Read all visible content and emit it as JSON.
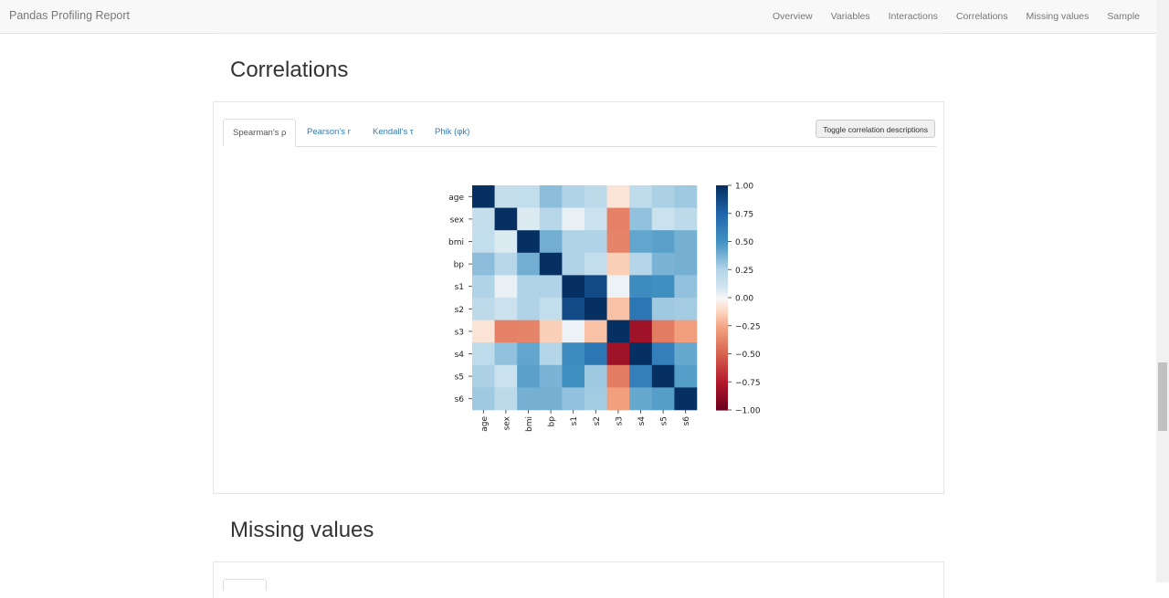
{
  "navbar": {
    "brand": "Pandas Profiling Report",
    "links": [
      "Overview",
      "Variables",
      "Interactions",
      "Correlations",
      "Missing values",
      "Sample"
    ]
  },
  "correlations": {
    "title": "Correlations",
    "tabs": [
      "Spearman's ρ",
      "Pearson's r",
      "Kendall's τ",
      "Phik (φk)"
    ],
    "active_tab": 0,
    "toggle_button": "Toggle correlation descriptions"
  },
  "missing": {
    "title": "Missing values"
  },
  "chart_data": {
    "type": "heatmap",
    "title": "",
    "variables": [
      "age",
      "sex",
      "bmi",
      "bp",
      "s1",
      "s2",
      "s3",
      "s4",
      "s5",
      "s6"
    ],
    "matrix": [
      [
        1.0,
        0.17,
        0.18,
        0.34,
        0.26,
        0.21,
        -0.07,
        0.2,
        0.27,
        0.3
      ],
      [
        0.17,
        1.0,
        0.07,
        0.24,
        0.04,
        0.13,
        -0.38,
        0.33,
        0.14,
        0.21
      ],
      [
        0.18,
        0.07,
        1.0,
        0.4,
        0.26,
        0.26,
        -0.37,
        0.43,
        0.45,
        0.39
      ],
      [
        0.34,
        0.24,
        0.4,
        1.0,
        0.26,
        0.18,
        -0.13,
        0.25,
        0.38,
        0.39
      ],
      [
        0.26,
        0.04,
        0.26,
        0.26,
        1.0,
        0.88,
        0.03,
        0.54,
        0.52,
        0.33
      ],
      [
        0.21,
        0.13,
        0.26,
        0.18,
        0.88,
        1.0,
        -0.17,
        0.66,
        0.3,
        0.29
      ],
      [
        -0.07,
        -0.38,
        -0.37,
        -0.13,
        0.03,
        -0.17,
        1.0,
        -0.81,
        -0.4,
        -0.27
      ],
      [
        0.2,
        0.33,
        0.43,
        0.25,
        0.54,
        0.66,
        -0.81,
        1.0,
        0.61,
        0.42
      ],
      [
        0.27,
        0.14,
        0.45,
        0.38,
        0.52,
        0.3,
        -0.4,
        0.61,
        1.0,
        0.46
      ],
      [
        0.3,
        0.21,
        0.39,
        0.39,
        0.33,
        0.29,
        -0.27,
        0.42,
        0.46,
        1.0
      ]
    ],
    "colormap": "RdBu",
    "vmin": -1.0,
    "vmax": 1.0,
    "colorbar_ticks": [
      "1.00",
      "0.75",
      "0.50",
      "0.25",
      "0.00",
      "−0.25",
      "−0.50",
      "−0.75",
      "−1.00"
    ]
  }
}
